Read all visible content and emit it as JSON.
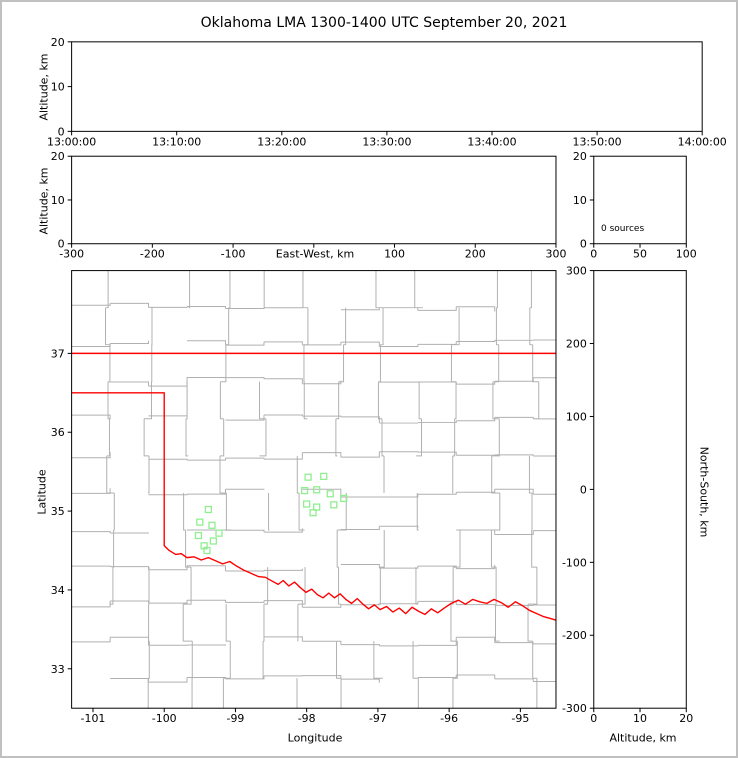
{
  "figure": {
    "title": "Oklahoma LMA 1300-1400 UTC September 20, 2021"
  },
  "colors": {
    "axis": "#000000",
    "tick_label": "#000000",
    "background": "#ffffff",
    "frame_border": "#c0c0c0",
    "county_line": "#b0b0b0",
    "state_border": "#ff0000",
    "station_marker": "#90ee90"
  },
  "chart_data": [
    {
      "id": "time_height_panel",
      "type": "scatter",
      "ylabel": "Altitude, km",
      "ylim": [
        0,
        20
      ],
      "y_ticks": [
        0,
        10,
        20
      ],
      "x_tick_labels": [
        "13:00:00",
        "13:10:00",
        "13:20:00",
        "13:30:00",
        "13:40:00",
        "13:50:00",
        "14:00:00"
      ],
      "points": []
    },
    {
      "id": "ew_height_panel",
      "type": "scatter",
      "xlabel": "East-West, km",
      "ylabel": "Altitude, km",
      "xlim": [
        -300,
        300
      ],
      "x_ticks": [
        -300,
        -200,
        -100,
        0,
        100,
        200,
        300
      ],
      "x_tick_labels": [
        "-300",
        "-200",
        "-100",
        "",
        "100",
        "200",
        "300"
      ],
      "ylim": [
        0,
        20
      ],
      "y_ticks": [
        0,
        10,
        20
      ],
      "points": []
    },
    {
      "id": "altitude_histogram_panel",
      "type": "line",
      "annotation": "0 sources",
      "xlim": [
        0,
        100
      ],
      "x_ticks": [
        0,
        50,
        100
      ],
      "ylim": [
        0,
        20
      ],
      "y_ticks": [
        0,
        10,
        20
      ],
      "points": []
    },
    {
      "id": "plan_view_panel",
      "type": "scatter",
      "xlabel": "Longitude",
      "ylabel": "Latitude",
      "xlim": [
        -101.3,
        -94.5
      ],
      "x_ticks": [
        -101,
        -100,
        -99,
        -98,
        -97,
        -96,
        -95
      ],
      "ylim": [
        32.5,
        38.05
      ],
      "y_ticks": [
        33,
        34,
        35,
        36,
        37
      ],
      "county_grid": {
        "lon_step": 0.54,
        "lat_step": 0.47
      },
      "state_border": {
        "north_lat": 37.0,
        "panhandle_lat": 36.5,
        "panhandle_east_lon": -100.0,
        "red_river": [
          [
            -100.0,
            34.56
          ],
          [
            -99.93,
            34.5
          ],
          [
            -99.84,
            34.45
          ],
          [
            -99.76,
            34.46
          ],
          [
            -99.68,
            34.41
          ],
          [
            -99.58,
            34.42
          ],
          [
            -99.48,
            34.38
          ],
          [
            -99.38,
            34.41
          ],
          [
            -99.28,
            34.37
          ],
          [
            -99.18,
            34.33
          ],
          [
            -99.08,
            34.36
          ],
          [
            -98.98,
            34.3
          ],
          [
            -98.88,
            34.25
          ],
          [
            -98.78,
            34.21
          ],
          [
            -98.68,
            34.17
          ],
          [
            -98.58,
            34.16
          ],
          [
            -98.48,
            34.11
          ],
          [
            -98.4,
            34.07
          ],
          [
            -98.33,
            34.12
          ],
          [
            -98.25,
            34.05
          ],
          [
            -98.17,
            34.1
          ],
          [
            -98.09,
            34.03
          ],
          [
            -98.01,
            33.97
          ],
          [
            -97.93,
            34.01
          ],
          [
            -97.85,
            33.94
          ],
          [
            -97.77,
            33.9
          ],
          [
            -97.69,
            33.96
          ],
          [
            -97.61,
            33.9
          ],
          [
            -97.53,
            33.95
          ],
          [
            -97.45,
            33.88
          ],
          [
            -97.37,
            33.83
          ],
          [
            -97.29,
            33.89
          ],
          [
            -97.21,
            33.82
          ],
          [
            -97.13,
            33.76
          ],
          [
            -97.05,
            33.81
          ],
          [
            -96.97,
            33.75
          ],
          [
            -96.88,
            33.79
          ],
          [
            -96.79,
            33.72
          ],
          [
            -96.7,
            33.77
          ],
          [
            -96.61,
            33.7
          ],
          [
            -96.52,
            33.78
          ],
          [
            -96.43,
            33.73
          ],
          [
            -96.34,
            33.69
          ],
          [
            -96.25,
            33.76
          ],
          [
            -96.16,
            33.71
          ],
          [
            -96.07,
            33.77
          ],
          [
            -95.97,
            33.83
          ],
          [
            -95.87,
            33.87
          ],
          [
            -95.77,
            33.82
          ],
          [
            -95.67,
            33.88
          ],
          [
            -95.57,
            33.85
          ],
          [
            -95.47,
            33.83
          ],
          [
            -95.37,
            33.88
          ],
          [
            -95.27,
            33.84
          ],
          [
            -95.17,
            33.78
          ],
          [
            -95.07,
            33.85
          ],
          [
            -94.97,
            33.8
          ],
          [
            -94.87,
            33.74
          ],
          [
            -94.77,
            33.7
          ],
          [
            -94.67,
            33.66
          ],
          [
            -94.55,
            33.63
          ],
          [
            -94.45,
            33.6
          ]
        ]
      },
      "stations": [
        [
          -97.98,
          35.43
        ],
        [
          -97.76,
          35.44
        ],
        [
          -98.03,
          35.26
        ],
        [
          -97.86,
          35.27
        ],
        [
          -97.67,
          35.22
        ],
        [
          -98.0,
          35.09
        ],
        [
          -97.86,
          35.05
        ],
        [
          -97.48,
          35.16
        ],
        [
          -97.91,
          34.98
        ],
        [
          -97.62,
          35.08
        ],
        [
          -99.38,
          35.02
        ],
        [
          -99.5,
          34.86
        ],
        [
          -99.33,
          34.82
        ],
        [
          -99.23,
          34.72
        ],
        [
          -99.52,
          34.69
        ],
        [
          -99.31,
          34.62
        ],
        [
          -99.44,
          34.56
        ],
        [
          -99.4,
          34.5
        ]
      ],
      "points": []
    },
    {
      "id": "ns_height_panel",
      "type": "scatter",
      "xlabel": "Altitude, km",
      "ylabel_right": "North-South, km",
      "xlim": [
        0,
        20
      ],
      "x_ticks": [
        0,
        10,
        20
      ],
      "ylim": [
        -300,
        300
      ],
      "y_ticks": [
        -300,
        -200,
        -100,
        0,
        100,
        200,
        300
      ],
      "points": []
    }
  ]
}
